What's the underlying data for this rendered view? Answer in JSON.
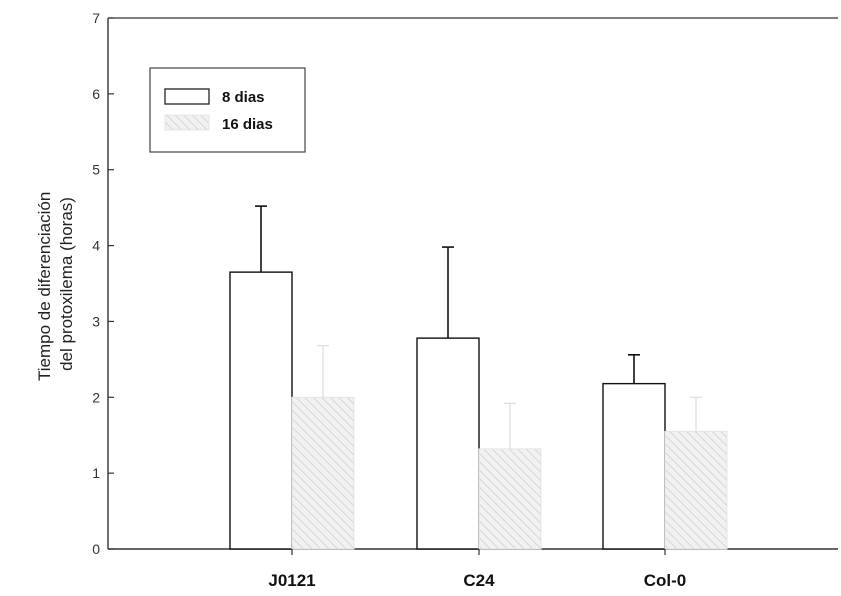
{
  "chart_data": {
    "type": "bar",
    "categories": [
      "J0121",
      "C24",
      "Col-0"
    ],
    "series": [
      {
        "name": "8 dias",
        "values": [
          3.65,
          2.78,
          2.18
        ],
        "errors": [
          0.87,
          1.2,
          0.38
        ],
        "fill": "#ffffff"
      },
      {
        "name": "16 dias",
        "values": [
          2.0,
          1.32,
          1.55
        ],
        "errors": [
          0.68,
          0.6,
          0.45
        ],
        "fill": "#d0d0d0"
      }
    ],
    "ylabel_lines": [
      "Tiempo de diferenciación",
      "del protoxilema (horas)"
    ],
    "ylim": [
      0,
      7
    ],
    "yticks": [
      "0",
      "1",
      "2",
      "3",
      "4",
      "5",
      "6",
      "7"
    ],
    "legend_position": "top-left",
    "grid": false
  }
}
